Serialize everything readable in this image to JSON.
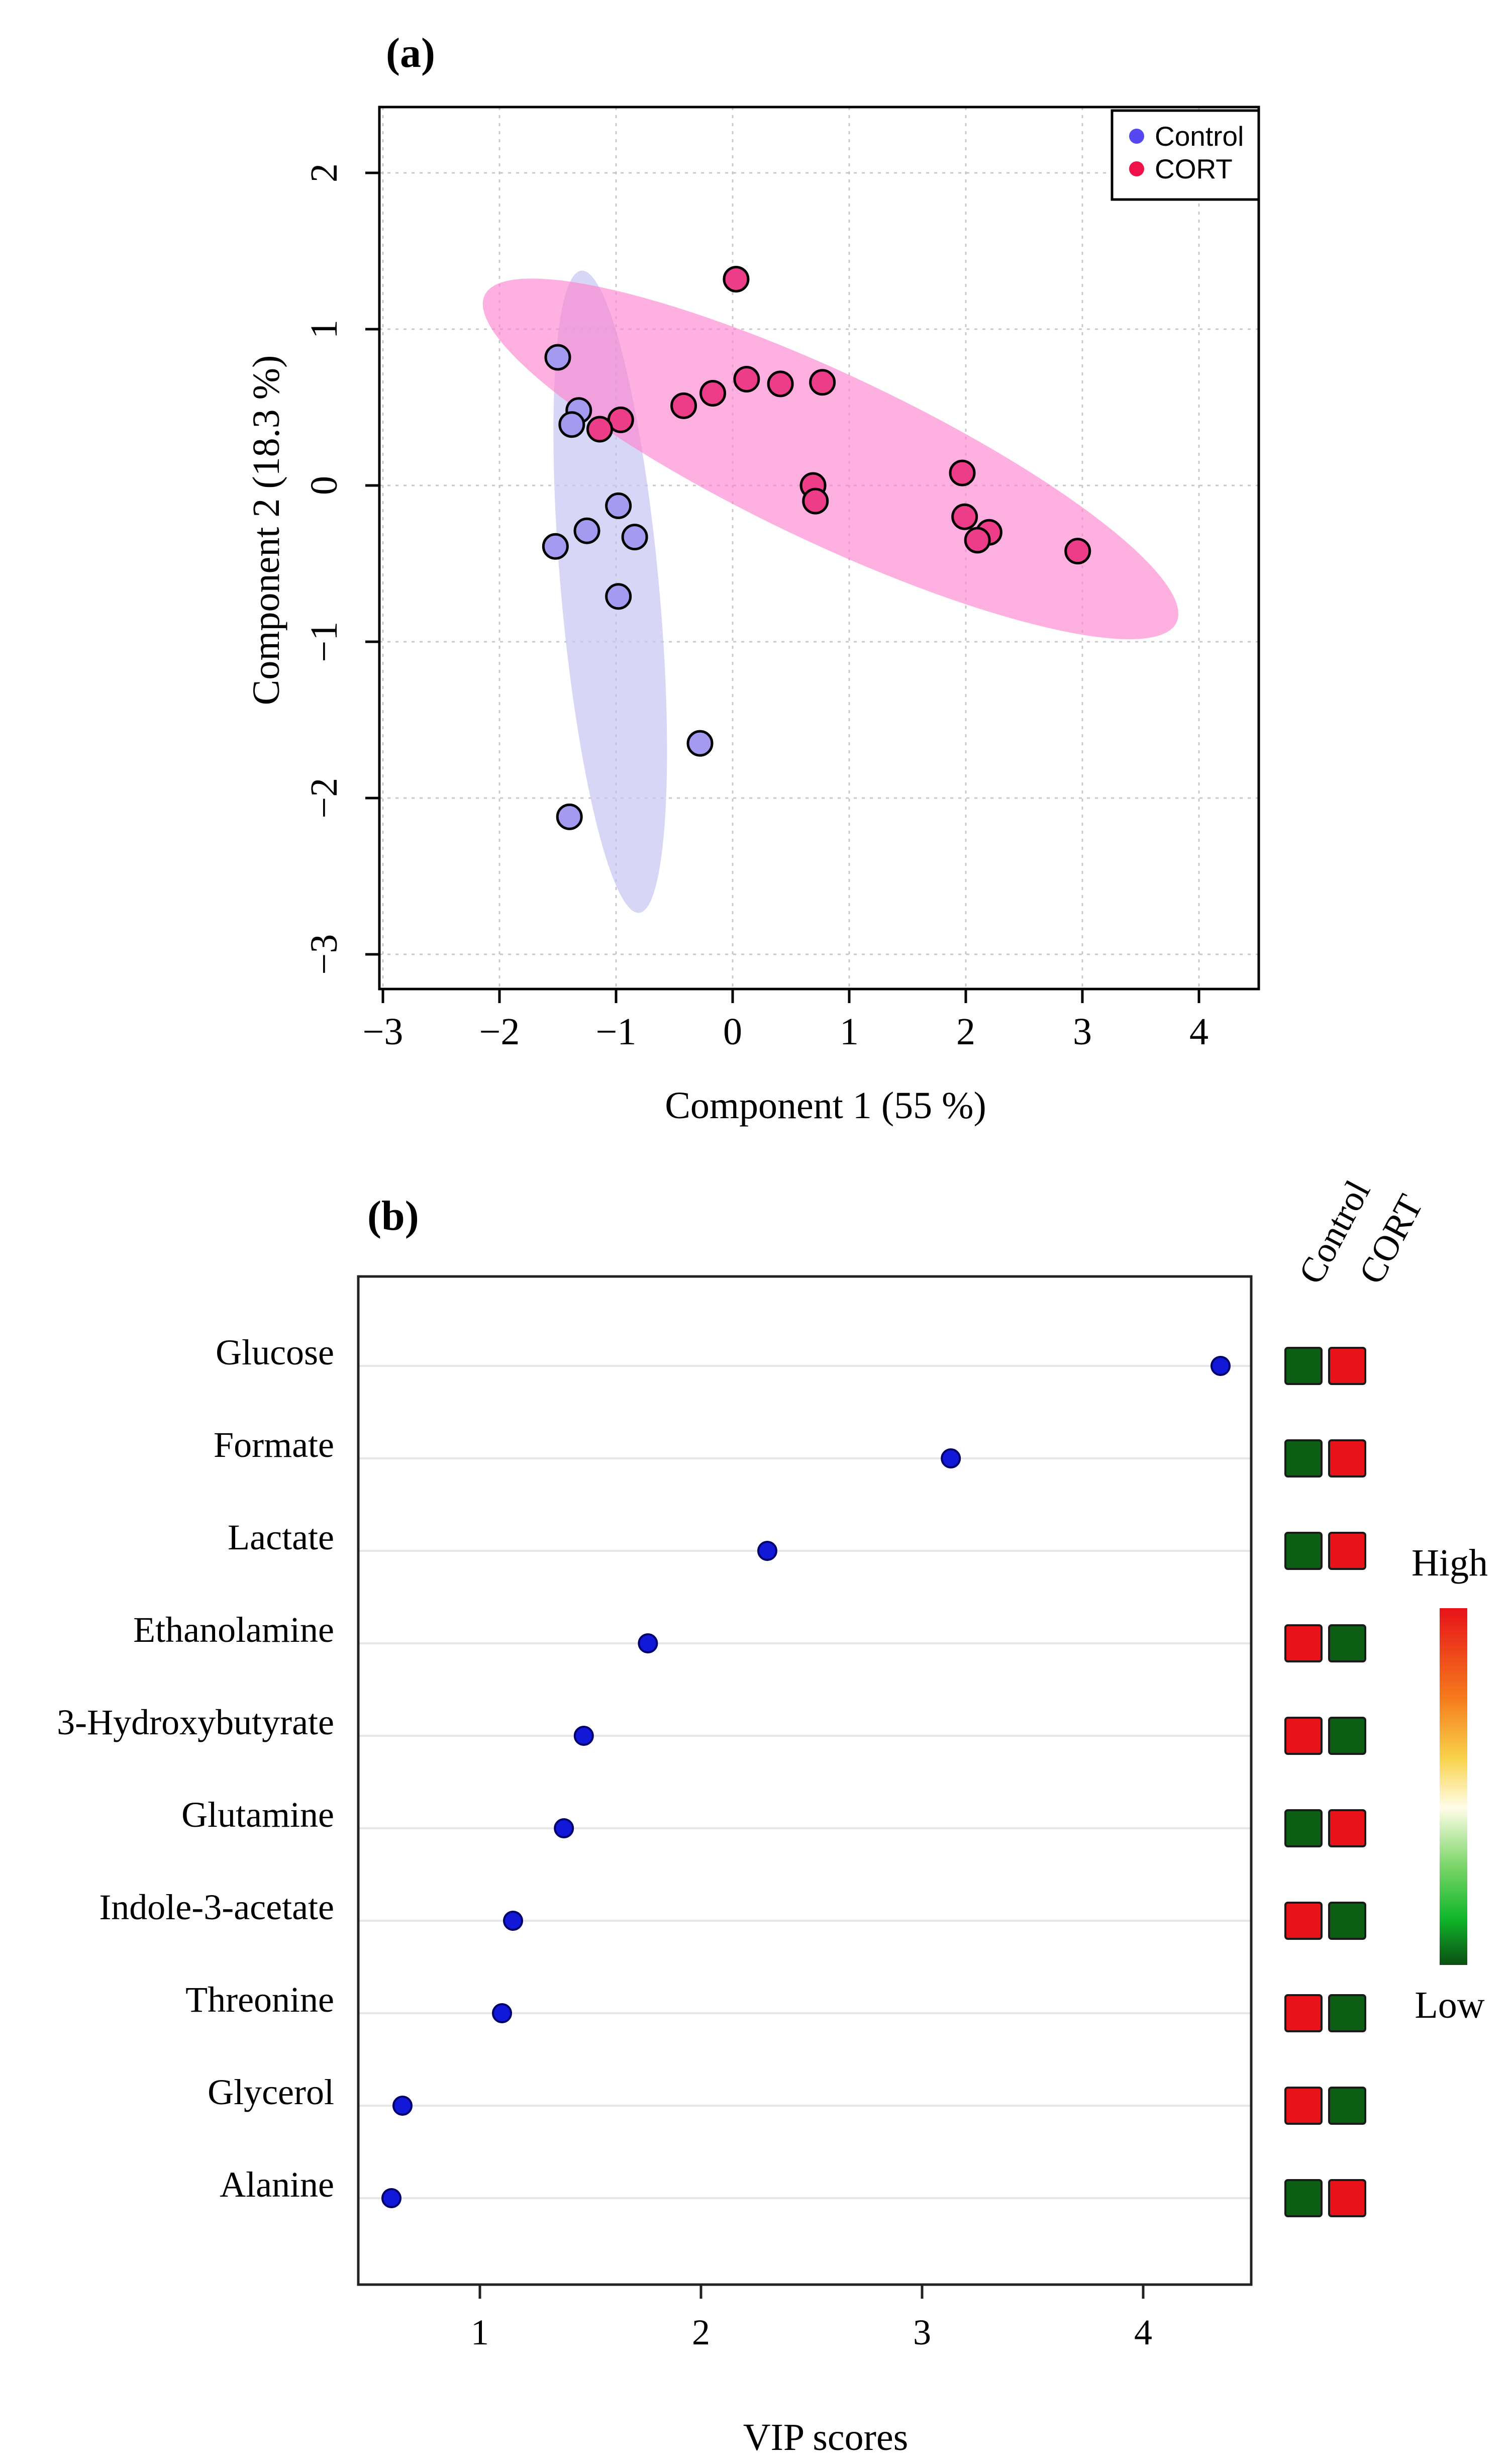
{
  "panel_a": {
    "label": "(a)",
    "legend": [
      {
        "name": "Control",
        "color": "#5548f0"
      },
      {
        "name": "CORT",
        "color": "#f0104a"
      }
    ]
  },
  "panel_b": {
    "label": "(b)",
    "heat_columns": [
      "Control",
      "CORT"
    ],
    "scale_high": "High",
    "scale_low": "Low"
  },
  "colors": {
    "control_ellipse": "#c9c6f4",
    "cort_ellipse": "#fd7fcd",
    "control_point": "#a49af0",
    "cort_point": "#ee3d88",
    "vip_point": "#1218d8",
    "heat_high": "#e8121a",
    "heat_low": "#0c5e14"
  },
  "chart_data": [
    {
      "type": "scatter",
      "xlabel": "Component 1 (55 %)",
      "ylabel": "Component 2 (18.3 %)",
      "xlim": [
        -3,
        4.5
      ],
      "ylim": [
        -3.2,
        2.4
      ],
      "x_ticks": [
        "−3",
        "−2",
        "−1",
        "0",
        "1",
        "2",
        "3",
        "4"
      ],
      "y_ticks": [
        "−3",
        "−2",
        "−1",
        "0",
        "1",
        "2"
      ],
      "grid": true,
      "legend_position": "top-right",
      "series": [
        {
          "name": "Control",
          "points": [
            [
              -1.5,
              0.82
            ],
            [
              -1.32,
              0.48
            ],
            [
              -1.38,
              0.39
            ],
            [
              -0.98,
              -0.13
            ],
            [
              -1.25,
              -0.29
            ],
            [
              -0.84,
              -0.33
            ],
            [
              -1.52,
              -0.39
            ],
            [
              -0.98,
              -0.71
            ],
            [
              -0.28,
              -1.65
            ],
            [
              -1.4,
              -2.12
            ]
          ]
        },
        {
          "name": "CORT",
          "points": [
            [
              0.03,
              1.32
            ],
            [
              0.12,
              0.68
            ],
            [
              -0.17,
              0.59
            ],
            [
              0.41,
              0.65
            ],
            [
              0.77,
              0.66
            ],
            [
              -0.42,
              0.51
            ],
            [
              -0.96,
              0.42
            ],
            [
              -1.14,
              0.36
            ],
            [
              0.69,
              0.0
            ],
            [
              0.71,
              -0.1
            ],
            [
              1.97,
              0.08
            ],
            [
              1.99,
              -0.2
            ],
            [
              2.2,
              -0.3
            ],
            [
              2.1,
              -0.35
            ],
            [
              2.96,
              -0.42
            ]
          ]
        }
      ],
      "ellipses": [
        {
          "name": "Control",
          "cx": -1.05,
          "cy": -0.68,
          "semi_major": 2.07,
          "semi_minor": 0.42,
          "angle_deg": 97
        },
        {
          "name": "CORT",
          "cx": 0.84,
          "cy": 0.17,
          "semi_major": 3.15,
          "semi_minor": 0.56,
          "angle_deg": -19
        }
      ]
    },
    {
      "type": "scatter",
      "xlabel": "VIP scores",
      "xlim": [
        0.45,
        4.5
      ],
      "x_ticks": [
        "1",
        "2",
        "3",
        "4"
      ],
      "categories": [
        "Glucose",
        "Formate",
        "Lactate",
        "Ethanolamine",
        "3-Hydroxybutyrate",
        "Glutamine",
        "Indole-3-acetate",
        "Threonine",
        "Glycerol",
        "Alanine"
      ],
      "values": [
        4.35,
        3.13,
        2.3,
        1.76,
        1.47,
        1.38,
        1.15,
        1.1,
        0.65,
        0.6
      ],
      "heatmap": {
        "columns": [
          "Control",
          "CORT"
        ],
        "rows": [
          [
            "Low",
            "High"
          ],
          [
            "Low",
            "High"
          ],
          [
            "Low",
            "High"
          ],
          [
            "High",
            "Low"
          ],
          [
            "High",
            "Low"
          ],
          [
            "Low",
            "High"
          ],
          [
            "High",
            "Low"
          ],
          [
            "High",
            "Low"
          ],
          [
            "High",
            "Low"
          ],
          [
            "Low",
            "High"
          ]
        ]
      }
    }
  ]
}
